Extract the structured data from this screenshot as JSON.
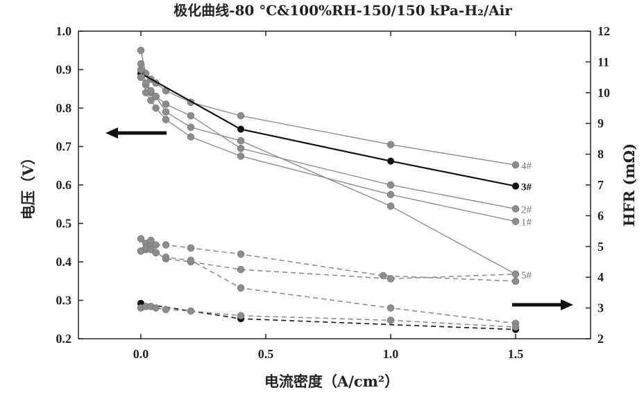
{
  "chart_data": {
    "type": "line",
    "title": "极化曲线-80 °C&100%RH-150/150 kPa-H₂/Air",
    "xlabel": "电流密度（A/cm²）",
    "ylabel_left": "电压（V）",
    "ylabel_right": "HFR (mΩ)",
    "xlim": [
      -0.25,
      1.8
    ],
    "ylim_left": [
      0.2,
      1.0
    ],
    "ylim_right": [
      2,
      12
    ],
    "x_ticks": [
      "0.0",
      "0.5",
      "1.0",
      "1.5"
    ],
    "y_left_ticks": [
      "0.2",
      "0.3",
      "0.4",
      "0.5",
      "0.6",
      "0.7",
      "0.8",
      "0.9",
      "1.0"
    ],
    "y_right_ticks": [
      "2",
      "3",
      "4",
      "5",
      "6",
      "7",
      "8",
      "9",
      "10",
      "11",
      "12"
    ],
    "grid": false,
    "polarization_series": [
      {
        "name": "4#",
        "label_bold": false,
        "color": "#8c8c8c",
        "x": [
          0.0,
          0.02,
          0.04,
          0.06,
          0.1,
          0.2,
          0.4,
          1.0,
          1.5
        ],
        "y": [
          0.95,
          0.89,
          0.875,
          0.865,
          0.845,
          0.815,
          0.78,
          0.705,
          0.652
        ]
      },
      {
        "name": "3#",
        "label_bold": true,
        "color": "#111111",
        "x": [
          0.0,
          0.4,
          1.0,
          1.5
        ],
        "y": [
          0.89,
          0.745,
          0.662,
          0.597
        ]
      },
      {
        "name": "2#",
        "label_bold": false,
        "color": "#8c8c8c",
        "x": [
          0.0,
          0.02,
          0.04,
          0.06,
          0.1,
          0.2,
          0.4,
          1.0,
          1.5
        ],
        "y": [
          0.88,
          0.86,
          0.84,
          0.83,
          0.81,
          0.78,
          0.695,
          0.6,
          0.538
        ]
      },
      {
        "name": "1#",
        "label_bold": false,
        "color": "#8c8c8c",
        "x": [
          0.0,
          0.02,
          0.04,
          0.06,
          0.1,
          0.2,
          0.4,
          1.0,
          1.5
        ],
        "y": [
          0.9,
          0.84,
          0.82,
          0.8,
          0.77,
          0.725,
          0.675,
          0.575,
          0.505
        ]
      },
      {
        "name": "5#",
        "label_bold": false,
        "color": "#8c8c8c",
        "x": [
          0.0,
          0.02,
          0.04,
          0.06,
          0.1,
          0.2,
          0.4,
          1.0,
          1.5
        ],
        "y": [
          0.915,
          0.865,
          0.845,
          0.83,
          0.79,
          0.75,
          0.715,
          0.545,
          0.368
        ]
      }
    ],
    "hfr_series": [
      {
        "color": "#8c8c8c",
        "x": [
          0.0,
          0.02,
          0.04,
          0.06,
          0.1,
          0.2,
          0.4,
          0.97,
          1.5
        ],
        "y": [
          5.25,
          5.1,
          5.1,
          5.05,
          5.05,
          4.95,
          4.75,
          4.05,
          3.87
        ]
      },
      {
        "color": "#8c8c8c",
        "x": [
          0.0,
          0.02,
          0.04,
          0.06,
          0.1,
          0.2,
          0.4,
          1.0,
          1.5
        ],
        "y": [
          4.85,
          4.9,
          5.2,
          4.8,
          4.6,
          4.5,
          4.25,
          3.95,
          4.1
        ]
      },
      {
        "color": "#8c8c8c",
        "x": [
          0.0,
          0.02,
          0.04,
          0.06,
          0.1,
          0.2,
          0.4,
          1.0,
          1.5
        ],
        "y": [
          4.85,
          4.95,
          4.9,
          4.8,
          4.65,
          4.55,
          3.65,
          3.0,
          2.5
        ]
      },
      {
        "color": "#111111",
        "x": [
          0.0,
          0.4,
          1.5
        ],
        "y": [
          3.15,
          2.65,
          2.3
        ]
      },
      {
        "color": "#8c8c8c",
        "x": [
          0.0,
          0.02,
          0.04,
          0.06,
          0.1,
          0.2,
          0.4,
          1.0,
          1.5
        ],
        "y": [
          3.0,
          3.05,
          3.05,
          3.0,
          2.95,
          2.9,
          2.75,
          2.6,
          2.38
        ]
      }
    ],
    "annotations": [
      {
        "type": "arrow",
        "direction": "left",
        "meaning": "polarization curves read on left axis"
      },
      {
        "type": "arrow",
        "direction": "right",
        "meaning": "HFR curves read on right axis"
      }
    ]
  }
}
